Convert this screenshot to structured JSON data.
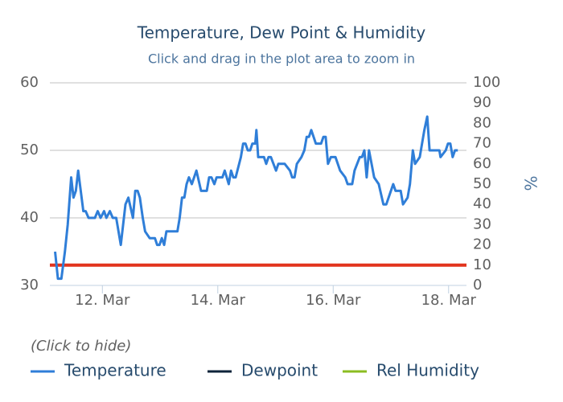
{
  "chart_data": {
    "type": "line",
    "title": "Temperature, Dew Point & Humidity",
    "subtitle": "Click and drag in the plot area to zoom in",
    "y2_label": "%",
    "legend_hint": "(Click to hide)",
    "x": [
      11.18,
      11.23,
      11.29,
      11.35,
      11.4,
      11.46,
      11.5,
      11.54,
      11.58,
      11.67,
      11.71,
      11.76,
      11.87,
      11.92,
      11.97,
      12.03,
      12.07,
      12.13,
      12.18,
      12.24,
      12.32,
      12.4,
      12.45,
      12.53,
      12.57,
      12.61,
      12.65,
      12.7,
      12.74,
      12.82,
      12.91,
      12.95,
      12.99,
      13.03,
      13.07,
      13.11,
      13.3,
      13.34,
      13.38,
      13.42,
      13.46,
      13.5,
      13.55,
      13.63,
      13.71,
      13.81,
      13.85,
      13.89,
      13.94,
      13.98,
      14.08,
      14.12,
      14.19,
      14.23,
      14.27,
      14.31,
      14.4,
      14.44,
      14.48,
      14.52,
      14.56,
      14.6,
      14.65,
      14.67,
      14.7,
      14.8,
      14.84,
      14.88,
      14.92,
      15.01,
      15.05,
      15.16,
      15.25,
      15.29,
      15.33,
      15.37,
      15.45,
      15.5,
      15.54,
      15.58,
      15.62,
      15.66,
      15.7,
      15.79,
      15.83,
      15.87,
      15.91,
      15.96,
      16.04,
      16.12,
      16.21,
      16.25,
      16.33,
      16.37,
      16.46,
      16.5,
      16.54,
      16.58,
      16.62,
      16.71,
      16.79,
      16.87,
      16.92,
      17.04,
      17.08,
      17.17,
      17.21,
      17.29,
      17.33,
      17.38,
      17.42,
      17.5,
      17.58,
      17.63,
      17.67,
      17.84,
      17.86,
      17.95,
      17.99,
      18.03,
      18.07,
      18.11,
      18.16
    ],
    "series": [
      {
        "name": "Temperature",
        "color": "#2f7ed8",
        "values": [
          35,
          31,
          31,
          35,
          39,
          46,
          43,
          44,
          47,
          41,
          41,
          40,
          40,
          41,
          40,
          41,
          40,
          41,
          40,
          40,
          36,
          42,
          43,
          40,
          44,
          44,
          43,
          40,
          38,
          37,
          37,
          36,
          36,
          37,
          36,
          38,
          38,
          40,
          43,
          43,
          45,
          46,
          45,
          47,
          44,
          44,
          46,
          46,
          45,
          46,
          46,
          47,
          45,
          47,
          46,
          46,
          49,
          51,
          51,
          50,
          50,
          51,
          51,
          53,
          49,
          49,
          48,
          49,
          49,
          47,
          48,
          48,
          47,
          46,
          46,
          48,
          49,
          50,
          52,
          52,
          53,
          52,
          51,
          51,
          52,
          52,
          48,
          49,
          49,
          47,
          46,
          45,
          45,
          47,
          49,
          49,
          50,
          46,
          50,
          46,
          45,
          42,
          42,
          45,
          44,
          44,
          42,
          43,
          45,
          50,
          48,
          49,
          53,
          55,
          50,
          50,
          49,
          50,
          51,
          51,
          49,
          50,
          50
        ]
      },
      {
        "name": "Dewpoint",
        "color": "#0d233a"
      },
      {
        "name": "Rel Humidity",
        "color": "#8bbc21",
        "axis": "y2"
      }
    ],
    "plot_lines": [
      {
        "value": 33,
        "color": "#e2341d"
      }
    ],
    "xlim": [
      11.09,
      18.31
    ],
    "xticks": [
      {
        "value": 12,
        "label": "12. Mar"
      },
      {
        "value": 14,
        "label": "14. Mar"
      },
      {
        "value": 16,
        "label": "16. Mar"
      },
      {
        "value": 18,
        "label": "18. Mar"
      }
    ],
    "ylim": [
      30,
      60
    ],
    "yticks": [
      30,
      40,
      50,
      60
    ],
    "y2lim": [
      0,
      100
    ],
    "y2ticks": [
      0,
      10,
      20,
      30,
      40,
      50,
      60,
      70,
      80,
      90,
      100
    ],
    "grid": true
  }
}
